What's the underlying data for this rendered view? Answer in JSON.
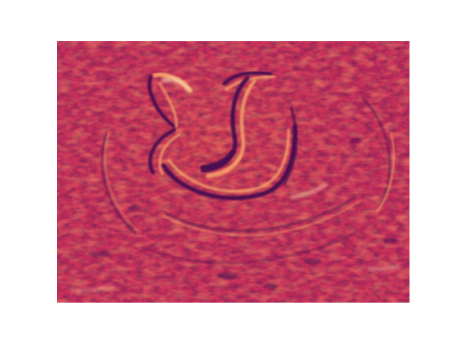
{
  "image": {
    "content": "",
    "colormap": "magma",
    "palette": {
      "dark": "#4a0f4f",
      "mid_dark": "#8c1f55",
      "base": "#c8325a",
      "mid_light": "#e5564a",
      "light": "#f6a46a",
      "highlight": "#fde1b0"
    }
  }
}
